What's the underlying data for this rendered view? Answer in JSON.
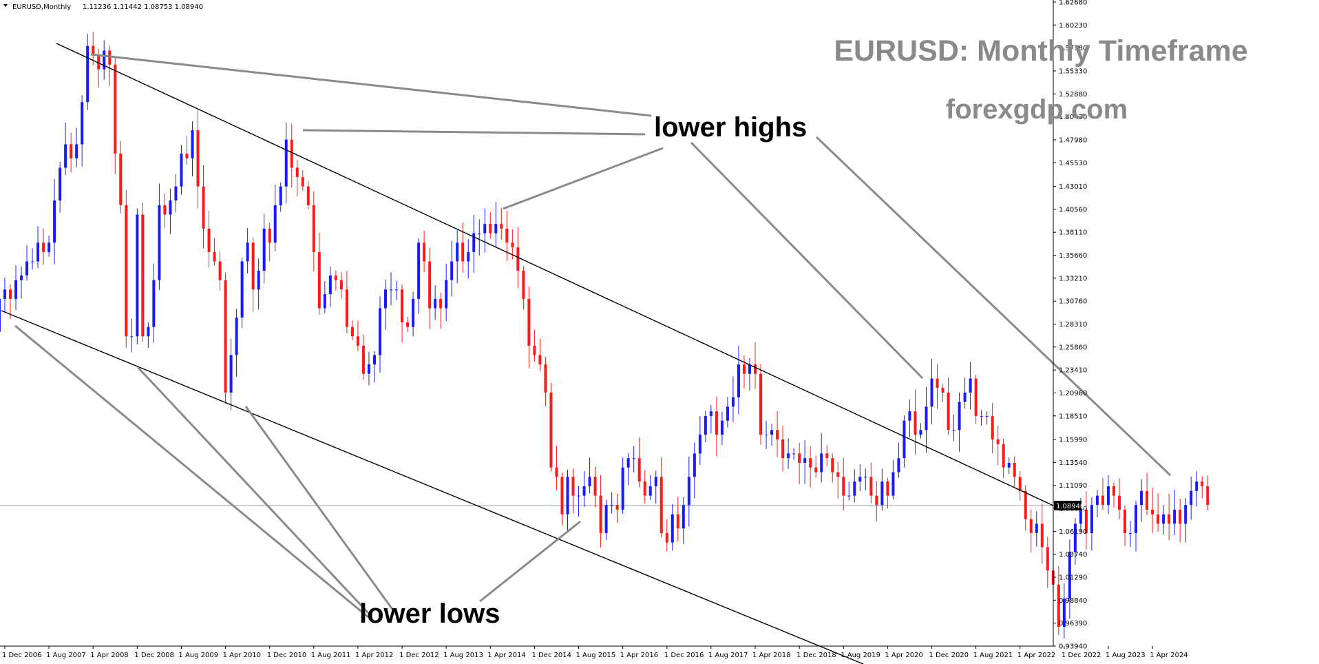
{
  "header": {
    "symbol": "EURUSD,Monthly",
    "ohlc": "1.11236 1.11442 1.08753 1.08940"
  },
  "annotations": {
    "title": "EURUSD: Monthly Timeframe",
    "site": "forexgdp.com",
    "lower_highs": "lower highs",
    "lower_lows": "lower lows"
  },
  "colors": {
    "bull": "#1a1aff",
    "bear": "#ff1a1a",
    "trendline": "#000000",
    "pointer": "#8a8a8a",
    "price_line": "#9a9a9a"
  },
  "chart_data": {
    "type": "candlestick",
    "symbol": "EURUSD",
    "timeframe": "Monthly",
    "current_price": 1.0894,
    "current_price_label": "1.08940",
    "ylim": [
      0.9394,
      1.6268
    ],
    "y_ticks": [
      "1.62680",
      "1.60230",
      "1.57780",
      "1.55330",
      "1.52880",
      "1.50430",
      "1.47980",
      "1.45530",
      "1.43010",
      "1.40560",
      "1.38110",
      "1.35660",
      "1.33210",
      "1.30760",
      "1.28310",
      "1.25860",
      "1.23410",
      "1.20960",
      "1.18510",
      "1.15990",
      "1.13540",
      "1.11090",
      "1.08640",
      "1.06190",
      "1.03740",
      "1.01290",
      "0.98840",
      "0.96390",
      "0.93940"
    ],
    "x_ticks": [
      {
        "label": "1 Dec 2006",
        "t": 2006.917
      },
      {
        "label": "1 Aug 2007",
        "t": 2007.583
      },
      {
        "label": "1 Apr 2008",
        "t": 2008.25
      },
      {
        "label": "1 Dec 2008",
        "t": 2008.917
      },
      {
        "label": "1 Aug 2009",
        "t": 2009.583
      },
      {
        "label": "1 Apr 2010",
        "t": 2010.25
      },
      {
        "label": "1 Dec 2010",
        "t": 2010.917
      },
      {
        "label": "1 Aug 2011",
        "t": 2011.583
      },
      {
        "label": "1 Apr 2012",
        "t": 2012.25
      },
      {
        "label": "1 Dec 2012",
        "t": 2012.917
      },
      {
        "label": "1 Aug 2013",
        "t": 2013.583
      },
      {
        "label": "1 Apr 2014",
        "t": 2014.25
      },
      {
        "label": "1 Dec 2014",
        "t": 2014.917
      },
      {
        "label": "1 Aug 2015",
        "t": 2015.583
      },
      {
        "label": "1 Apr 2016",
        "t": 2016.25
      },
      {
        "label": "1 Dec 2016",
        "t": 2016.917
      },
      {
        "label": "1 Aug 2017",
        "t": 2017.583
      },
      {
        "label": "1 Apr 2018",
        "t": 2018.25
      },
      {
        "label": "1 Dec 2018",
        "t": 2018.917
      },
      {
        "label": "1 Aug 2019",
        "t": 2019.583
      },
      {
        "label": "1 Apr 2020",
        "t": 2020.25
      },
      {
        "label": "1 Dec 2020",
        "t": 2020.917
      },
      {
        "label": "1 Aug 2021",
        "t": 2021.583
      },
      {
        "label": "1 Apr 2022",
        "t": 2022.25
      },
      {
        "label": "1 Dec 2022",
        "t": 2022.917
      },
      {
        "label": "1 Aug 2023",
        "t": 2023.583
      },
      {
        "label": "1 Apr 2024",
        "t": 2024.25
      }
    ],
    "closes": {
      "start": "2006-10",
      "values": [
        1.275,
        1.31,
        1.32,
        1.31,
        1.33,
        1.335,
        1.35,
        1.35,
        1.37,
        1.36,
        1.37,
        1.415,
        1.45,
        1.475,
        1.46,
        1.475,
        1.52,
        1.58,
        1.57,
        1.555,
        1.575,
        1.56,
        1.465,
        1.41,
        1.27,
        1.27,
        1.4,
        1.27,
        1.28,
        1.33,
        1.41,
        1.4,
        1.415,
        1.43,
        1.465,
        1.46,
        1.49,
        1.43,
        1.385,
        1.36,
        1.35,
        1.33,
        1.21,
        1.25,
        1.29,
        1.35,
        1.37,
        1.32,
        1.34,
        1.385,
        1.37,
        1.41,
        1.43,
        1.48,
        1.45,
        1.44,
        1.43,
        1.41,
        1.36,
        1.3,
        1.315,
        1.335,
        1.33,
        1.32,
        1.28,
        1.27,
        1.26,
        1.23,
        1.24,
        1.25,
        1.3,
        1.32,
        1.32,
        1.32,
        1.285,
        1.28,
        1.31,
        1.37,
        1.35,
        1.3,
        1.31,
        1.3,
        1.33,
        1.35,
        1.37,
        1.35,
        1.36,
        1.38,
        1.38,
        1.39,
        1.38,
        1.39,
        1.385,
        1.37,
        1.365,
        1.34,
        1.31,
        1.26,
        1.25,
        1.24,
        1.21,
        1.13,
        1.12,
        1.08,
        1.12,
        1.1,
        1.1,
        1.11,
        1.12,
        1.1,
        1.06,
        1.09,
        1.09,
        1.085,
        1.13,
        1.14,
        1.14,
        1.115,
        1.1,
        1.11,
        1.12,
        1.06,
        1.05,
        1.08,
        1.065,
        1.09,
        1.12,
        1.145,
        1.165,
        1.185,
        1.19,
        1.165,
        1.18,
        1.195,
        1.205,
        1.24,
        1.23,
        1.24,
        1.23,
        1.165,
        1.165,
        1.17,
        1.16,
        1.14,
        1.145,
        1.145,
        1.135,
        1.14,
        1.13,
        1.125,
        1.145,
        1.14,
        1.125,
        1.12,
        1.1,
        1.1,
        1.115,
        1.12,
        1.12,
        1.1,
        1.09,
        1.115,
        1.1,
        1.125,
        1.14,
        1.18,
        1.19,
        1.165,
        1.17,
        1.195,
        1.225,
        1.215,
        1.21,
        1.17,
        1.17,
        1.2,
        1.21,
        1.225,
        1.185,
        1.185,
        1.185,
        1.16,
        1.155,
        1.13,
        1.135,
        1.12,
        1.105,
        1.075,
        1.06,
        1.07,
        1.045,
        1.02,
        1.005,
        0.96,
        0.99,
        1.04,
        1.07,
        1.085,
        1.06,
        1.09,
        1.1,
        1.09,
        1.11,
        1.1,
        1.085,
        1.06,
        1.06,
        1.09,
        1.105,
        1.085,
        1.08,
        1.07,
        1.08,
        1.07,
        1.085,
        1.07,
        1.09,
        1.105,
        1.115,
        1.11,
        1.09
      ]
    }
  }
}
